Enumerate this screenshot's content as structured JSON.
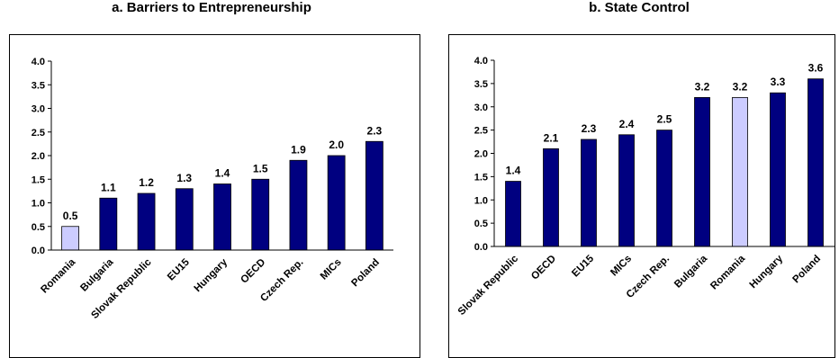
{
  "chart_data": [
    {
      "type": "bar",
      "title": "a. Barriers to Entrepreneurship",
      "categories": [
        "Romania",
        "Bulgaria",
        "Slovak Republic",
        "EU15",
        "Hungary",
        "OECD",
        "Czech Rep.",
        "MICs",
        "Poland"
      ],
      "values": [
        0.5,
        1.1,
        1.2,
        1.3,
        1.4,
        1.5,
        1.9,
        2.0,
        2.3
      ],
      "value_labels": [
        "0.5",
        "1.1",
        "1.2",
        "1.3",
        "1.4",
        "1.5",
        "1.9",
        "2.0",
        "2.3"
      ],
      "highlight": "Romania",
      "ylim": [
        0,
        4.0
      ],
      "yticks": [
        "0.0",
        "0.5",
        "1.0",
        "1.5",
        "2.0",
        "2.5",
        "3.0",
        "3.5",
        "4.0"
      ],
      "grid": false,
      "legend": "none"
    },
    {
      "type": "bar",
      "title": "b. State Control",
      "categories": [
        "Slovak Republic",
        "OECD",
        "EU15",
        "MICs",
        "Czech Rep.",
        "Bulgaria",
        "Romania",
        "Hungary",
        "Poland"
      ],
      "values": [
        1.4,
        2.1,
        2.3,
        2.4,
        2.5,
        3.2,
        3.2,
        3.3,
        3.6
      ],
      "value_labels": [
        "1.4",
        "2.1",
        "2.3",
        "2.4",
        "2.5",
        "3.2",
        "3.2",
        "3.3",
        "3.6"
      ],
      "highlight": "Romania",
      "ylim": [
        0,
        4.0
      ],
      "yticks": [
        "0.0",
        "0.5",
        "1.0",
        "1.5",
        "2.0",
        "2.5",
        "3.0",
        "3.5",
        "4.0"
      ],
      "grid": false,
      "legend": "none"
    }
  ],
  "colors": {
    "bar": "#000080",
    "highlight": "#ccccff",
    "bar_outline": "#000000",
    "axis": "#000000"
  }
}
